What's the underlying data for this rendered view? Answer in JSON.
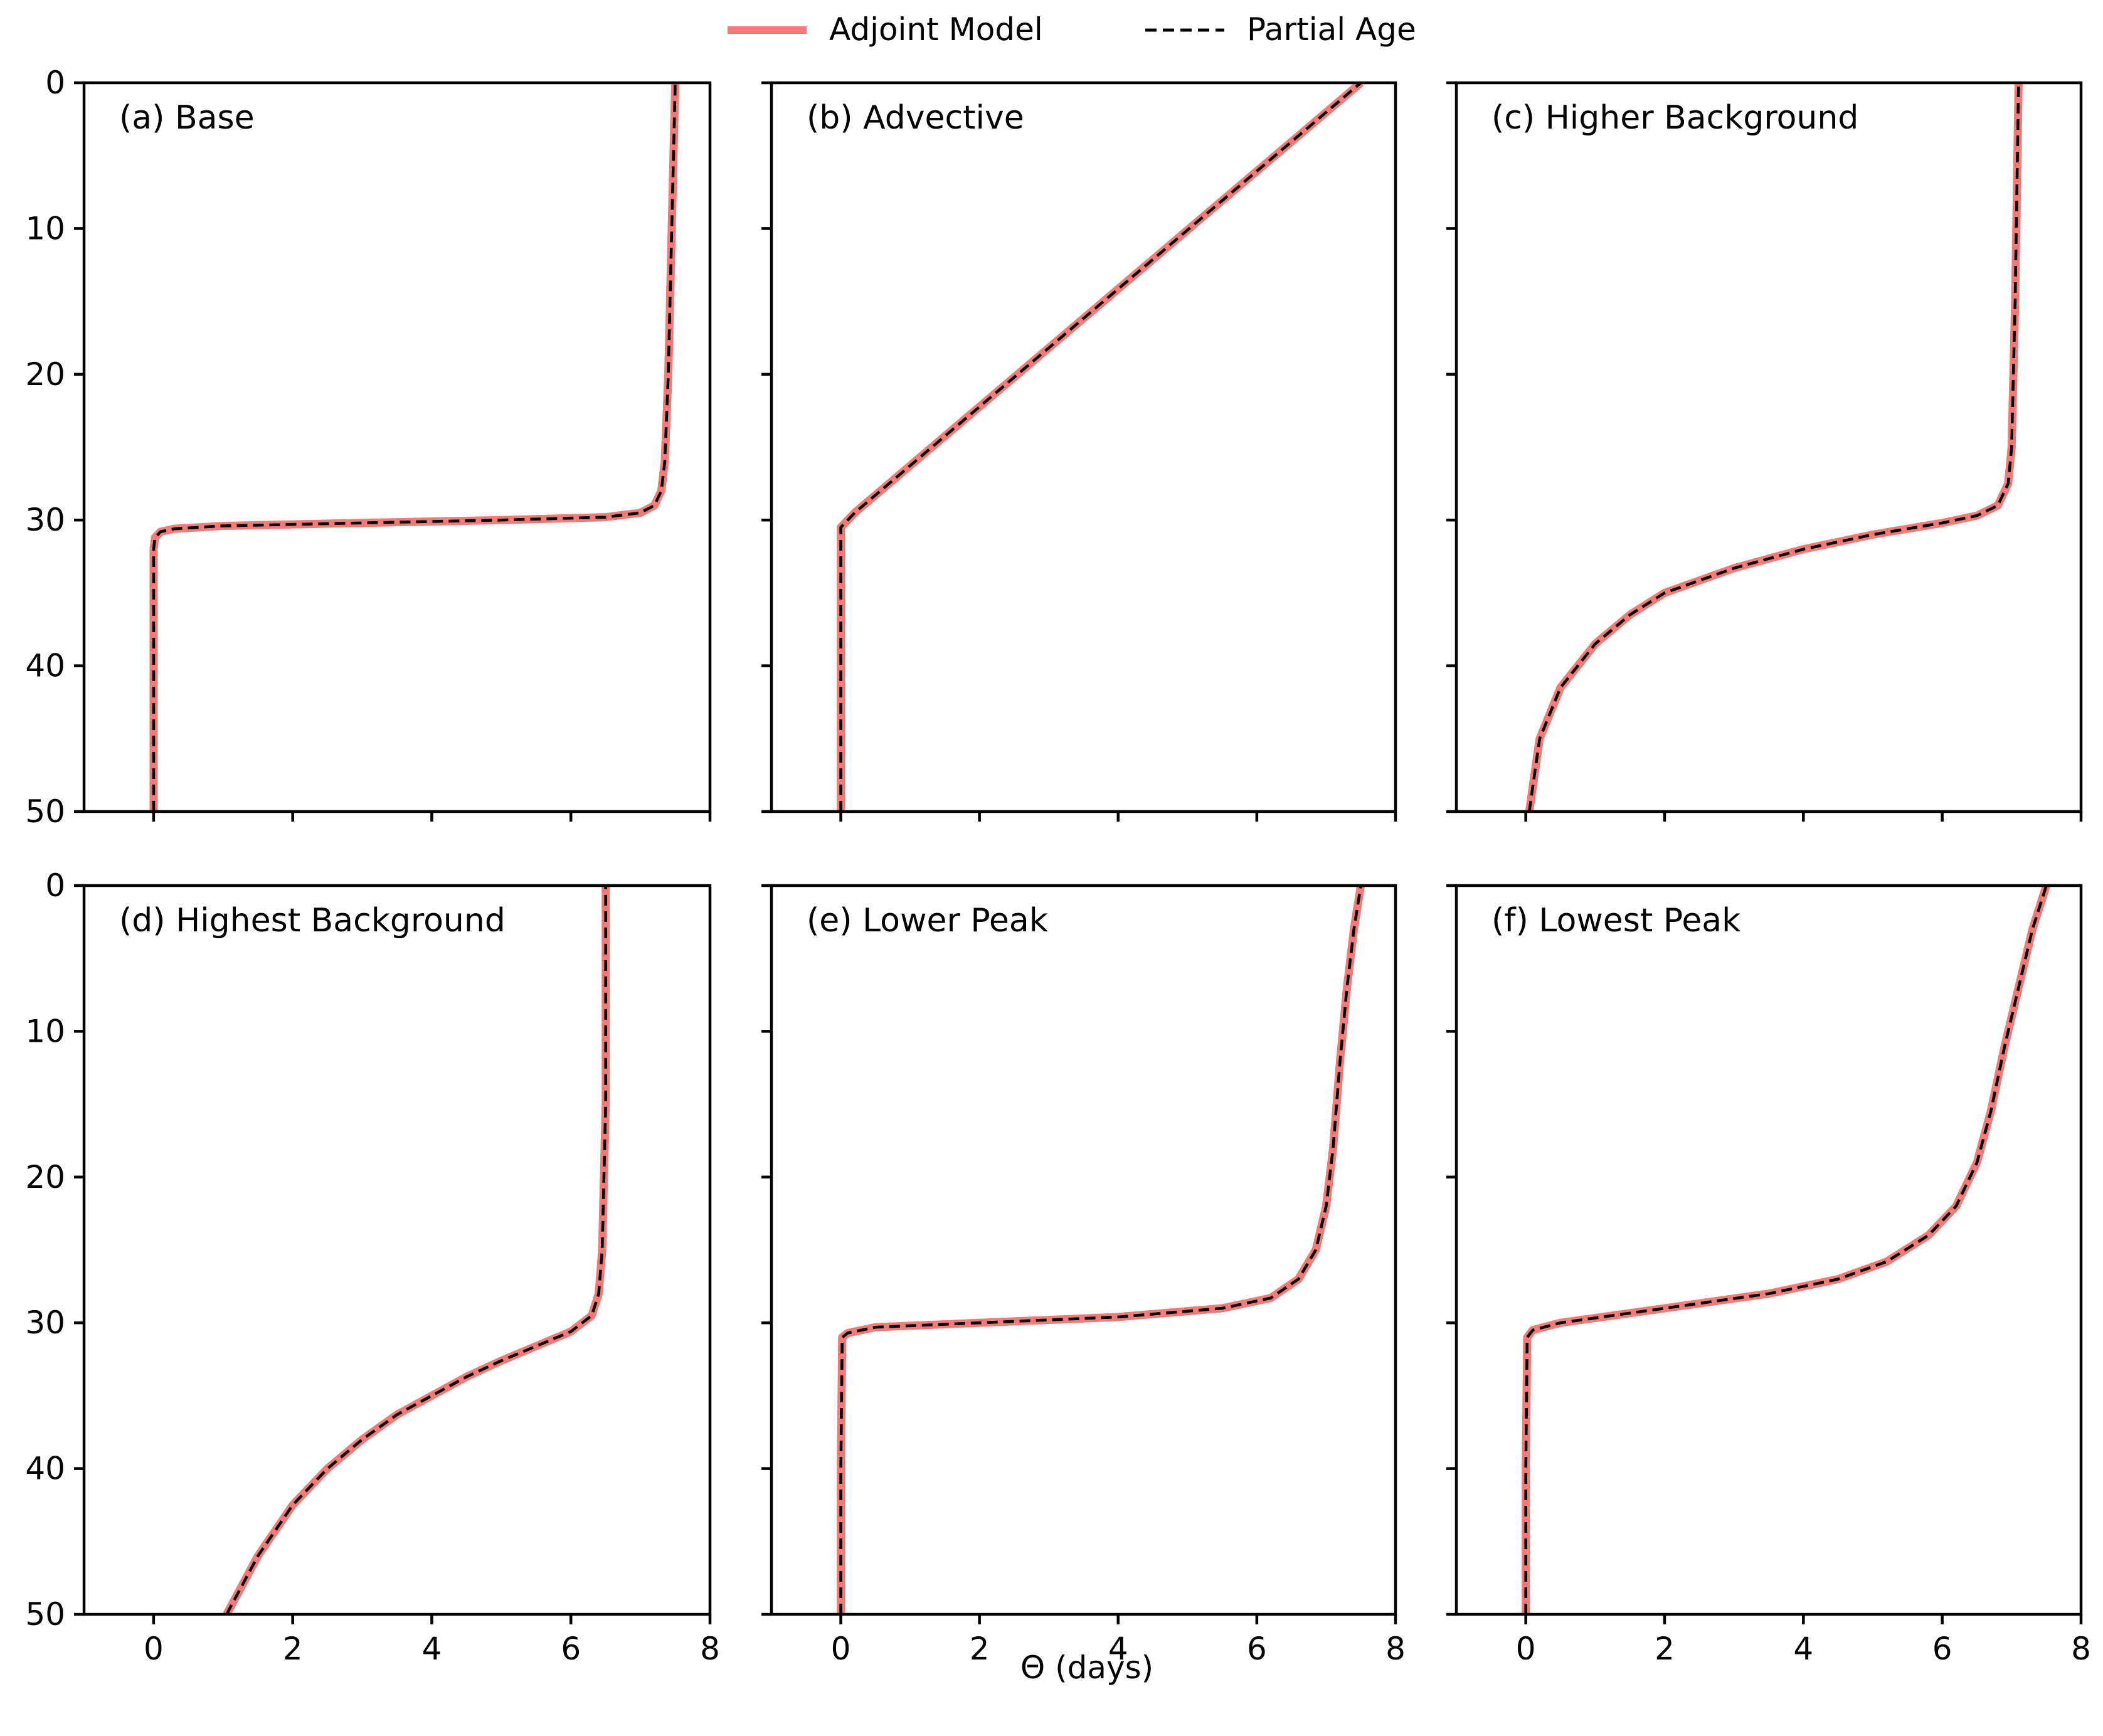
{
  "figure": {
    "xlabel": "Θ (days)",
    "legend": {
      "placement": "top-center",
      "entries": [
        {
          "label": "Adjoint Model",
          "color": "#f07b78",
          "style": "solid"
        },
        {
          "label": "Partial Age",
          "color": "#000000",
          "style": "dashed"
        }
      ]
    }
  },
  "chart_data": [
    {
      "type": "line",
      "title": "(a) Base",
      "xlim": [
        -1,
        8
      ],
      "ylim": [
        50,
        0
      ],
      "xticks": [
        0,
        2,
        4,
        6,
        8
      ],
      "yticks": [
        0,
        10,
        20,
        30,
        40,
        50
      ],
      "ylabel": "",
      "xlabel": "",
      "series": [
        {
          "name": "Adjoint Model",
          "x": [
            0.0,
            0.0,
            0.0,
            0.02,
            0.1,
            0.3,
            1.0,
            3.0,
            5.0,
            6.5,
            7.0,
            7.2,
            7.3,
            7.35,
            7.4,
            7.45,
            7.5
          ],
          "y": [
            50,
            40,
            32,
            31.2,
            30.8,
            30.6,
            30.4,
            30.2,
            30.0,
            29.8,
            29.5,
            29.0,
            28.0,
            26.0,
            20.0,
            10.0,
            0.0
          ]
        }
      ]
    },
    {
      "type": "line",
      "title": "(b) Advective",
      "xlim": [
        -1,
        8
      ],
      "ylim": [
        50,
        0
      ],
      "xticks": [
        0,
        2,
        4,
        6,
        8
      ],
      "yticks": [
        0,
        10,
        20,
        30,
        40,
        50
      ],
      "ylabel": "",
      "xlabel": "",
      "series": [
        {
          "name": "Adjoint Model",
          "x": [
            0.0,
            0.0,
            0.0,
            0.2,
            7.5
          ],
          "y": [
            50,
            40,
            30.5,
            29.5,
            0.0
          ]
        }
      ]
    },
    {
      "type": "line",
      "title": "(c) Higher Background",
      "xlim": [
        -1,
        8
      ],
      "ylim": [
        50,
        0
      ],
      "xticks": [
        0,
        2,
        4,
        6,
        8
      ],
      "yticks": [
        0,
        10,
        20,
        30,
        40,
        50
      ],
      "ylabel": "",
      "xlabel": "",
      "series": [
        {
          "name": "Adjoint Model",
          "x": [
            0.05,
            0.2,
            0.5,
            1.0,
            1.5,
            2.0,
            3.0,
            4.0,
            5.0,
            6.0,
            6.5,
            6.8,
            6.95,
            7.0,
            7.05,
            7.1
          ],
          "y": [
            50,
            45,
            41.5,
            38.5,
            36.5,
            35.0,
            33.3,
            32.0,
            31.0,
            30.2,
            29.7,
            29.0,
            27.5,
            25.0,
            15.0,
            0.0
          ]
        }
      ]
    },
    {
      "type": "line",
      "title": "(d) Highest Background",
      "xlim": [
        -1,
        8
      ],
      "ylim": [
        50,
        0
      ],
      "xticks": [
        0,
        2,
        4,
        6,
        8
      ],
      "yticks": [
        0,
        10,
        20,
        30,
        40,
        50
      ],
      "ylabel": "",
      "xlabel": "",
      "series": [
        {
          "name": "Adjoint Model",
          "x": [
            1.05,
            1.5,
            2.0,
            2.5,
            3.0,
            3.5,
            4.0,
            4.5,
            5.0,
            5.5,
            6.0,
            6.3,
            6.4,
            6.45,
            6.5,
            6.5
          ],
          "y": [
            50,
            46.0,
            42.5,
            40.0,
            38.0,
            36.3,
            35.0,
            33.7,
            32.6,
            31.6,
            30.6,
            29.5,
            28.0,
            25.0,
            15.0,
            0.0
          ]
        }
      ]
    },
    {
      "type": "line",
      "title": "(e) Lower Peak",
      "xlim": [
        -1,
        8
      ],
      "ylim": [
        50,
        0
      ],
      "xticks": [
        0,
        2,
        4,
        6,
        8
      ],
      "yticks": [
        0,
        10,
        20,
        30,
        40,
        50
      ],
      "ylabel": "",
      "xlabel": "",
      "series": [
        {
          "name": "Adjoint Model",
          "x": [
            0.0,
            0.0,
            0.02,
            0.1,
            0.5,
            2.0,
            4.0,
            5.5,
            6.2,
            6.6,
            6.85,
            7.0,
            7.1,
            7.2,
            7.3,
            7.4,
            7.5
          ],
          "y": [
            50,
            40,
            31.0,
            30.7,
            30.3,
            30.0,
            29.6,
            29.0,
            28.3,
            27.0,
            25.0,
            22.0,
            18.0,
            12.0,
            7.0,
            3.0,
            0.0
          ]
        }
      ]
    },
    {
      "type": "line",
      "title": "(f) Lowest Peak",
      "xlim": [
        -1,
        8
      ],
      "ylim": [
        50,
        0
      ],
      "xticks": [
        0,
        2,
        4,
        6,
        8
      ],
      "yticks": [
        0,
        10,
        20,
        30,
        40,
        50
      ],
      "ylabel": "",
      "xlabel": "",
      "series": [
        {
          "name": "Adjoint Model",
          "x": [
            0.0,
            0.0,
            0.02,
            0.1,
            0.5,
            2.0,
            3.5,
            4.5,
            5.2,
            5.8,
            6.2,
            6.5,
            6.7,
            6.9,
            7.1,
            7.3,
            7.5
          ],
          "y": [
            50,
            40,
            31.0,
            30.5,
            30.0,
            29.0,
            28.0,
            27.0,
            25.8,
            24.0,
            22.0,
            19.0,
            15.5,
            11.0,
            7.0,
            3.0,
            0.0
          ]
        }
      ]
    }
  ]
}
